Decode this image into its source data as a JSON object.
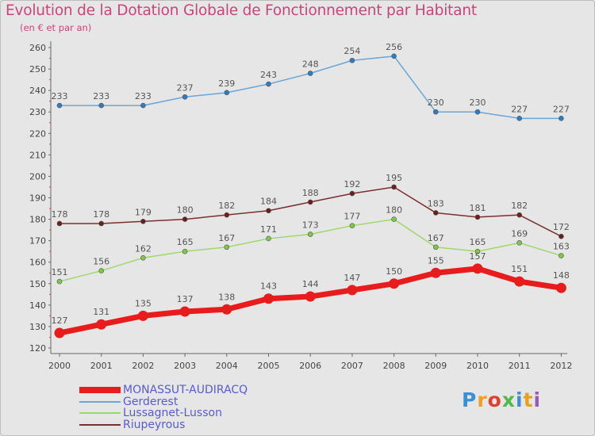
{
  "title": "Evolution de la Dotation Globale de Fonctionnement par Habitant",
  "subtitle": "(en € et par an)",
  "logo": {
    "text": "Proxiti",
    "colors": [
      "#3a8fd6",
      "#f0a020",
      "#e04030",
      "#52b84a",
      "#3a8fd6",
      "#e8a01c",
      "#9b59b6"
    ]
  },
  "chart_data": {
    "type": "line",
    "title": "Evolution de la Dotation Globale de Fonctionnement par Habitant",
    "subtitle": "(en € et par an)",
    "categories": [
      "2000",
      "2001",
      "2002",
      "2003",
      "2004",
      "2005",
      "2006",
      "2007",
      "2008",
      "2009",
      "2010",
      "2011",
      "2012"
    ],
    "ylim": [
      120,
      260
    ],
    "yticks": [
      120,
      130,
      140,
      150,
      160,
      170,
      180,
      190,
      200,
      210,
      220,
      230,
      240,
      250,
      260
    ],
    "grid": "none",
    "legend": "bottom-left",
    "series": [
      {
        "name": "MONASSUT-AUDIRACQ",
        "values": [
          127,
          131,
          135,
          137,
          138,
          143,
          144,
          147,
          150,
          155,
          157,
          151,
          148
        ],
        "color": "#e81c1c",
        "emphasis": true
      },
      {
        "name": "Gerderest",
        "values": [
          233,
          233,
          233,
          237,
          239,
          243,
          248,
          254,
          256,
          230,
          230,
          227,
          227
        ],
        "color": "#6aa6d6",
        "point_color": "#2f7cc0"
      },
      {
        "name": "Lussagnet-Lusson",
        "values": [
          151,
          156,
          162,
          165,
          167,
          171,
          173,
          177,
          180,
          167,
          165,
          169,
          163
        ],
        "color": "#9ed86a",
        "point_color": "#7ec848"
      },
      {
        "name": "Riupeyrous",
        "values": [
          178,
          178,
          179,
          180,
          182,
          184,
          188,
          192,
          195,
          183,
          181,
          182,
          172
        ],
        "color": "#7a3030",
        "point_color": "#6a1e1e"
      }
    ]
  }
}
